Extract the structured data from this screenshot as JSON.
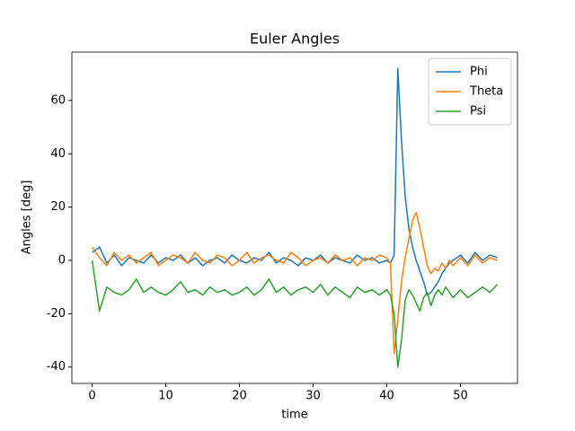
{
  "chart_data": {
    "type": "line",
    "title": "Euler Angles",
    "x_label": "time",
    "y_label": "Angles [deg]",
    "x": [
      0,
      1,
      2,
      3,
      4,
      5,
      6,
      7,
      8,
      9,
      10,
      11,
      12,
      13,
      14,
      15,
      16,
      17,
      18,
      19,
      20,
      21,
      22,
      23,
      24,
      25,
      26,
      27,
      28,
      29,
      30,
      31,
      32,
      33,
      34,
      35,
      36,
      37,
      38,
      39,
      40,
      40.5,
      41,
      41.5,
      42,
      42.5,
      43,
      43.5,
      44,
      44.5,
      45,
      45.5,
      46,
      46.5,
      47,
      47.5,
      48,
      48.5,
      49,
      50,
      51,
      52,
      53,
      54,
      55
    ],
    "series": [
      {
        "name": "Phi",
        "color": "#1f77b4",
        "values": [
          3,
          5,
          -1,
          2,
          -2,
          1,
          0,
          -1,
          2,
          -1,
          1,
          0,
          2,
          -1,
          1,
          -2,
          0,
          1,
          -1,
          2,
          0,
          -1,
          1,
          0,
          3,
          -1,
          1,
          0,
          -2,
          1,
          0,
          2,
          -1,
          1,
          0,
          -1,
          2,
          0,
          1,
          -1,
          0,
          -1,
          2,
          72,
          45,
          24,
          12,
          5,
          0,
          -4,
          -8,
          -13,
          -12,
          -10,
          -8,
          -5,
          -3,
          -1,
          0,
          2,
          -1,
          3,
          0,
          2,
          1
        ]
      },
      {
        "name": "Theta",
        "color": "#ff7f0e",
        "values": [
          5,
          1,
          -2,
          3,
          0,
          2,
          -1,
          1,
          3,
          -2,
          0,
          2,
          1,
          -1,
          3,
          0,
          -1,
          2,
          1,
          -2,
          0,
          3,
          -1,
          1,
          2,
          0,
          -1,
          3,
          1,
          -2,
          0,
          1,
          -1,
          2,
          0,
          1,
          -2,
          1,
          0,
          2,
          1,
          -1,
          -35,
          -22,
          -8,
          1,
          8,
          15,
          18,
          12,
          5,
          -2,
          -5,
          -3,
          -4,
          -1,
          -3,
          0,
          -2,
          1,
          -2,
          2,
          -1,
          1,
          0
        ]
      },
      {
        "name": "Psi",
        "color": "#2ca02c",
        "values": [
          0,
          -19,
          -10,
          -12,
          -13,
          -11,
          -7,
          -12,
          -10,
          -12,
          -13,
          -11,
          -8,
          -12,
          -11,
          -13,
          -10,
          -12,
          -11,
          -13,
          -12,
          -10,
          -13,
          -11,
          -7,
          -12,
          -10,
          -13,
          -11,
          -10,
          -12,
          -9,
          -13,
          -10,
          -12,
          -14,
          -10,
          -12,
          -11,
          -13,
          -11,
          -13,
          -20,
          -40,
          -30,
          -15,
          -11,
          -13,
          -16,
          -19,
          -14,
          -12,
          -17,
          -13,
          -11,
          -13,
          -10,
          -12,
          -14,
          -11,
          -14,
          -12,
          -10,
          -12,
          -9
        ]
      }
    ],
    "xlim": [
      -2.75,
      57.75
    ],
    "ylim": [
      -46.15,
      78.15
    ],
    "xticks": [
      0,
      10,
      20,
      30,
      40,
      50
    ],
    "yticks": [
      -40,
      -20,
      0,
      20,
      40,
      60
    ],
    "legend": "upper right"
  }
}
